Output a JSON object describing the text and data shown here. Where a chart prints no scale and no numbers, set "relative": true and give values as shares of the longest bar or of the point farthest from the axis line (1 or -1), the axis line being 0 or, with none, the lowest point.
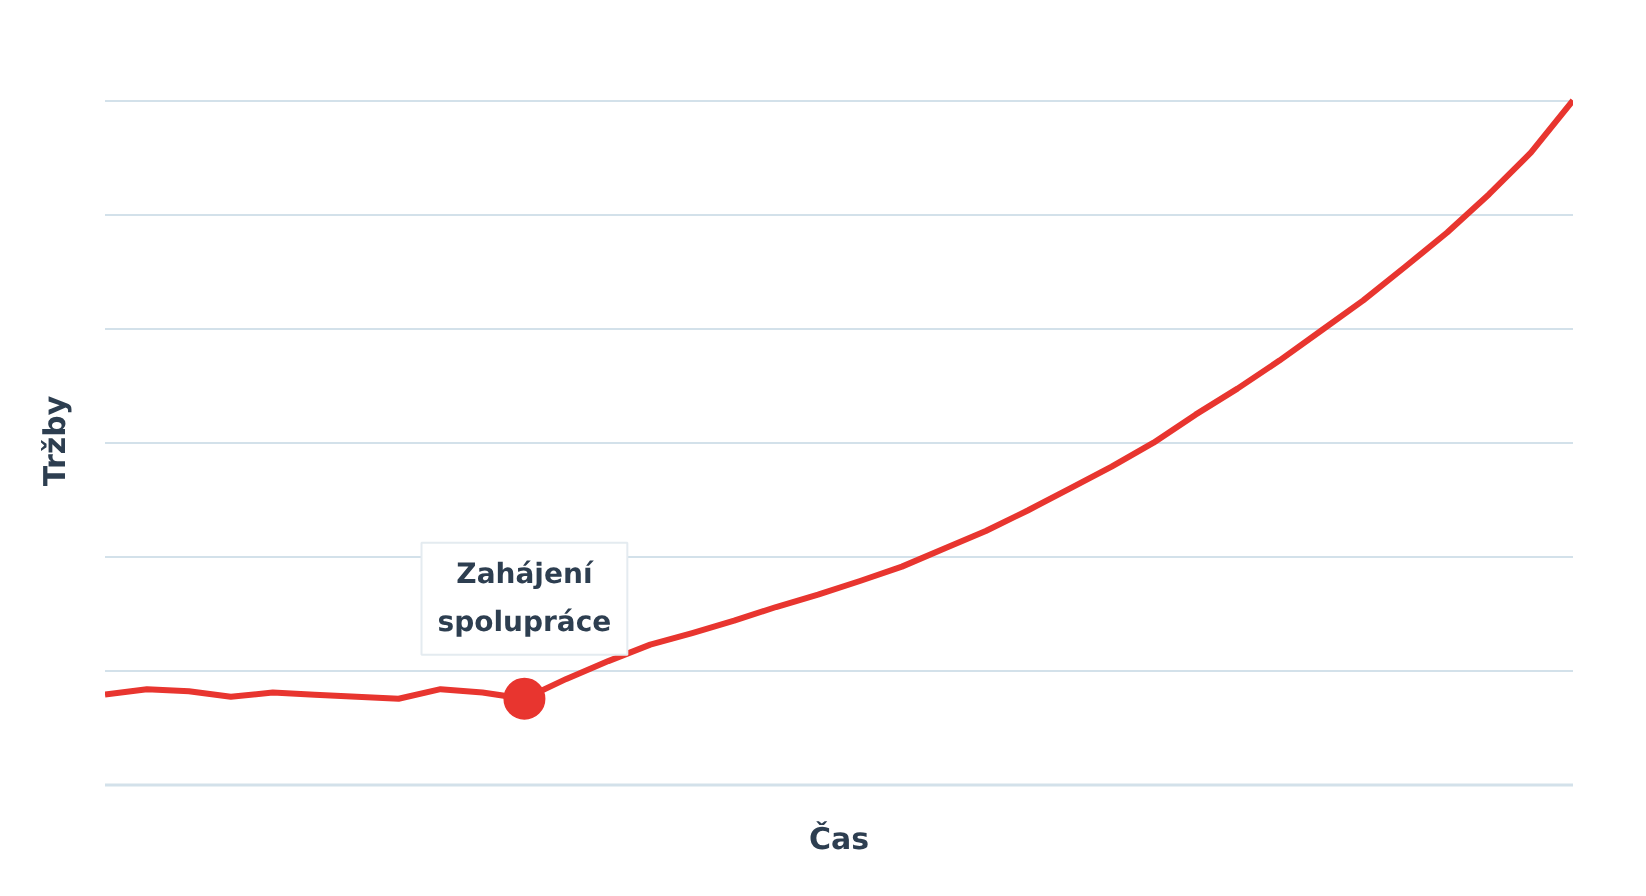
{
  "chart_data": {
    "type": "line",
    "relative": true,
    "xlabel": "Čas",
    "ylabel": "Tržby",
    "categories": [
      null,
      null,
      null,
      null,
      null,
      null,
      null,
      null,
      null,
      null,
      null,
      null,
      null,
      null,
      null,
      null,
      null,
      null,
      null,
      null,
      null,
      null,
      null,
      null,
      null,
      null,
      null,
      null,
      null,
      null,
      null,
      null,
      null,
      null,
      null,
      null
    ],
    "series": [
      {
        "color": "#e8352f",
        "values": [
          0.132,
          0.14,
          0.137,
          0.129,
          0.135,
          0.132,
          0.129,
          0.126,
          0.14,
          0.135,
          0.126,
          0.155,
          0.181,
          0.205,
          0.222,
          0.24,
          0.26,
          0.278,
          0.298,
          0.319,
          0.345,
          0.371,
          0.401,
          0.433,
          0.465,
          0.5,
          0.541,
          0.579,
          0.62,
          0.664,
          0.708,
          0.757,
          0.807,
          0.863,
          0.924,
          1.0
        ]
      }
    ],
    "annotations": [
      {
        "text": "Zahájení\nspolupráce",
        "y": 0.126
      }
    ],
    "grid": "y",
    "line_style": "solid"
  }
}
